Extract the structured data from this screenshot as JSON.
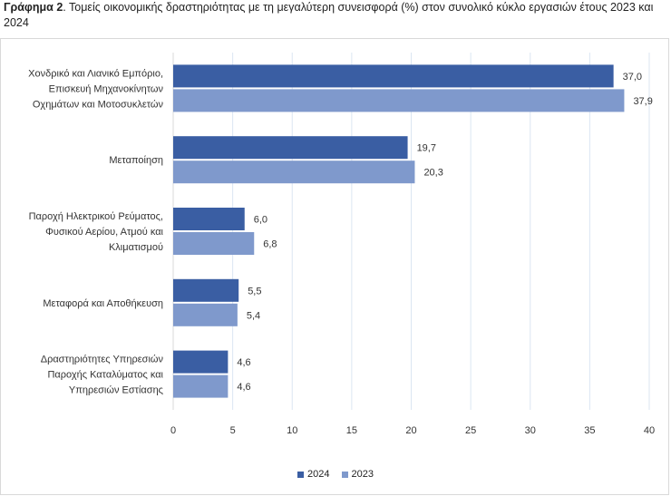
{
  "title": {
    "prefix": "Γράφημα 2",
    "text": ". Τομείς οικονομικής δραστηριότητας με τη μεγαλύτερη συνεισφορά (%) στον συνολικό κύκλο εργασιών έτους 2023 και 2024"
  },
  "colors": {
    "s2024": "#3a5ea3",
    "s2023": "#7f99cc",
    "grid": "#dbe6f2",
    "axis": "#d9d9d9"
  },
  "chart_data": {
    "type": "bar",
    "orientation": "horizontal",
    "categories": [
      [
        "Χονδρικό και Λιανικό Εμπόριο,",
        "Επισκευή Μηχανοκίνητων",
        "Οχημάτων και Μοτοσυκλετών"
      ],
      [
        "Μεταποίηση"
      ],
      [
        "Παροχή Ηλεκτρικού Ρεύματος,",
        "Φυσικού Αερίου, Ατμού και",
        "Κλιματισμού"
      ],
      [
        "Μεταφορά και Αποθήκευση"
      ],
      [
        "Δραστηριότητες Υπηρεσιών",
        "Παροχής Καταλύματος και",
        "Υπηρεσιών Εστίασης"
      ]
    ],
    "series": [
      {
        "name": "2024",
        "values": [
          37.0,
          19.7,
          6.0,
          5.5,
          4.6
        ],
        "labels": [
          "37,0",
          "19,7",
          "6,0",
          "5,5",
          "4,6"
        ]
      },
      {
        "name": "2023",
        "values": [
          37.9,
          20.3,
          6.8,
          5.4,
          4.6
        ],
        "labels": [
          "37,9",
          "20,3",
          "6,8",
          "5,4",
          "4,6"
        ]
      }
    ],
    "xlim": [
      0,
      40
    ],
    "xticks": [
      "0",
      "5",
      "10",
      "15",
      "20",
      "25",
      "30",
      "35",
      "40"
    ],
    "grid": true,
    "legend_position": "bottom"
  }
}
